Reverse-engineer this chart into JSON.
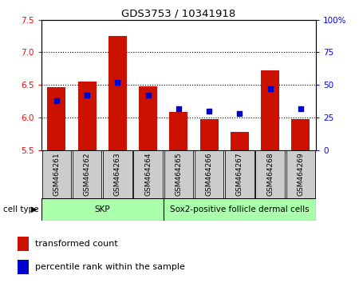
{
  "title": "GDS3753 / 10341918",
  "samples": [
    "GSM464261",
    "GSM464262",
    "GSM464263",
    "GSM464264",
    "GSM464265",
    "GSM464266",
    "GSM464267",
    "GSM464268",
    "GSM464269"
  ],
  "transformed_counts": [
    6.47,
    6.55,
    7.25,
    6.48,
    6.08,
    5.98,
    5.78,
    6.72,
    5.98
  ],
  "percentile_ranks": [
    38,
    42,
    52,
    42,
    32,
    30,
    28,
    47,
    32
  ],
  "bar_base": 5.5,
  "ylim_left": [
    5.5,
    7.5
  ],
  "ylim_right": [
    0,
    100
  ],
  "yticks_left": [
    5.5,
    6.0,
    6.5,
    7.0,
    7.5
  ],
  "yticks_right": [
    0,
    25,
    50,
    75,
    100
  ],
  "ytick_labels_right": [
    "0",
    "25",
    "50",
    "75",
    "100%"
  ],
  "bar_color": "#CC1100",
  "dot_color": "#0000CC",
  "groups": [
    {
      "label": "SKP",
      "indices": [
        0,
        1,
        2,
        3
      ],
      "color": "#AAFFAA"
    },
    {
      "label": "Sox2-positive follicle dermal cells",
      "indices": [
        4,
        5,
        6,
        7,
        8
      ],
      "color": "#AAFFAA"
    }
  ],
  "cell_type_label": "cell type",
  "legend_items": [
    {
      "label": "transformed count",
      "color": "#CC1100"
    },
    {
      "label": "percentile rank within the sample",
      "color": "#0000CC"
    }
  ],
  "grid_lines": [
    6.0,
    6.5,
    7.0
  ],
  "bar_width": 0.6
}
